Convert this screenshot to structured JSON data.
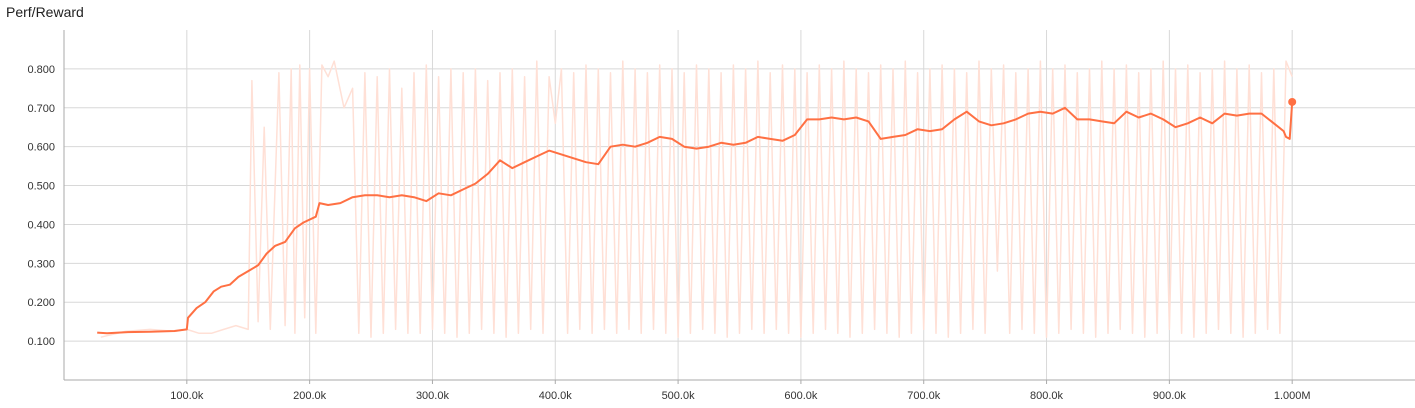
{
  "chart_data": {
    "type": "line",
    "title": "Perf/Reward",
    "xlabel": "",
    "ylabel": "",
    "xlim": [
      0,
      1100000
    ],
    "ylim": [
      0.0,
      0.9
    ],
    "grid": true,
    "x_ticks": [
      {
        "value": 100000,
        "label": "100.0k"
      },
      {
        "value": 200000,
        "label": "200.0k"
      },
      {
        "value": 300000,
        "label": "300.0k"
      },
      {
        "value": 400000,
        "label": "400.0k"
      },
      {
        "value": 500000,
        "label": "500.0k"
      },
      {
        "value": 600000,
        "label": "600.0k"
      },
      {
        "value": 700000,
        "label": "700.0k"
      },
      {
        "value": 800000,
        "label": "800.0k"
      },
      {
        "value": 900000,
        "label": "900.0k"
      },
      {
        "value": 1000000,
        "label": "1.000M"
      }
    ],
    "y_ticks": [
      {
        "value": 0.1,
        "label": "0.100"
      },
      {
        "value": 0.2,
        "label": "0.200"
      },
      {
        "value": 0.3,
        "label": "0.300"
      },
      {
        "value": 0.4,
        "label": "0.400"
      },
      {
        "value": 0.5,
        "label": "0.500"
      },
      {
        "value": 0.6,
        "label": "0.600"
      },
      {
        "value": 0.7,
        "label": "0.700"
      },
      {
        "value": 0.8,
        "label": "0.800"
      }
    ],
    "colors": {
      "smoothed": "#ff7043",
      "raw": "#ffe0d6",
      "grid": "#d8d8d8",
      "axis": "#aaaaaa"
    },
    "series": [
      {
        "role": "smoothed",
        "x": [
          27000,
          35000,
          50000,
          70000,
          90000,
          100000,
          101000,
          108000,
          115000,
          122000,
          128000,
          135000,
          142000,
          150000,
          158000,
          165000,
          172000,
          180000,
          188000,
          195000,
          205000,
          208000,
          215000,
          225000,
          235000,
          245000,
          255000,
          265000,
          275000,
          285000,
          295000,
          305000,
          315000,
          325000,
          335000,
          345000,
          355000,
          365000,
          375000,
          385000,
          395000,
          405000,
          415000,
          425000,
          435000,
          445000,
          455000,
          465000,
          475000,
          485000,
          495000,
          505000,
          515000,
          525000,
          535000,
          545000,
          555000,
          565000,
          575000,
          585000,
          595000,
          605000,
          615000,
          625000,
          635000,
          645000,
          655000,
          665000,
          675000,
          685000,
          695000,
          705000,
          715000,
          725000,
          735000,
          745000,
          755000,
          765000,
          775000,
          785000,
          795000,
          805000,
          815000,
          825000,
          835000,
          845000,
          855000,
          865000,
          875000,
          885000,
          895000,
          905000,
          915000,
          925000,
          935000,
          945000,
          955000,
          965000,
          975000,
          985000,
          993000,
          995000,
          998000,
          1000000
        ],
        "y": [
          0.122,
          0.12,
          0.123,
          0.124,
          0.126,
          0.13,
          0.16,
          0.185,
          0.2,
          0.228,
          0.24,
          0.245,
          0.265,
          0.28,
          0.295,
          0.325,
          0.345,
          0.355,
          0.39,
          0.405,
          0.42,
          0.455,
          0.45,
          0.455,
          0.47,
          0.475,
          0.475,
          0.47,
          0.475,
          0.47,
          0.46,
          0.48,
          0.475,
          0.49,
          0.505,
          0.53,
          0.565,
          0.545,
          0.56,
          0.575,
          0.59,
          0.58,
          0.57,
          0.56,
          0.555,
          0.6,
          0.605,
          0.6,
          0.61,
          0.625,
          0.62,
          0.6,
          0.595,
          0.6,
          0.61,
          0.605,
          0.61,
          0.625,
          0.62,
          0.615,
          0.63,
          0.67,
          0.67,
          0.675,
          0.67,
          0.675,
          0.665,
          0.62,
          0.625,
          0.63,
          0.645,
          0.64,
          0.645,
          0.67,
          0.69,
          0.665,
          0.655,
          0.66,
          0.67,
          0.685,
          0.69,
          0.685,
          0.7,
          0.67,
          0.67,
          0.665,
          0.66,
          0.69,
          0.675,
          0.685,
          0.67,
          0.65,
          0.66,
          0.675,
          0.66,
          0.685,
          0.68,
          0.685,
          0.685,
          0.66,
          0.64,
          0.625,
          0.62,
          0.715
        ]
      },
      {
        "role": "raw",
        "x": [
          30000,
          50000,
          70000,
          90000,
          100000,
          110000,
          120000,
          130000,
          140000,
          150000,
          153000,
          158000,
          163000,
          168000,
          175000,
          180000,
          185000,
          188000,
          192000,
          196000,
          200000,
          205000,
          210000,
          215000,
          220000,
          228000,
          235000,
          240000,
          245000,
          250000,
          255000,
          260000,
          265000,
          270000,
          275000,
          280000,
          285000,
          290000,
          295000,
          300000,
          305000,
          310000,
          315000,
          320000,
          325000,
          330000,
          335000,
          340000,
          345000,
          350000,
          355000,
          360000,
          365000,
          370000,
          375000,
          380000,
          385000,
          390000,
          395000,
          400000,
          405000,
          410000,
          415000,
          420000,
          425000,
          430000,
          435000,
          440000,
          445000,
          450000,
          455000,
          460000,
          465000,
          470000,
          475000,
          480000,
          485000,
          490000,
          495000,
          500000,
          505000,
          510000,
          515000,
          520000,
          525000,
          530000,
          535000,
          540000,
          545000,
          550000,
          555000,
          560000,
          565000,
          570000,
          575000,
          580000,
          585000,
          590000,
          595000,
          600000,
          605000,
          610000,
          615000,
          620000,
          625000,
          630000,
          635000,
          640000,
          645000,
          650000,
          655000,
          660000,
          665000,
          670000,
          675000,
          680000,
          685000,
          690000,
          695000,
          700000,
          705000,
          710000,
          715000,
          720000,
          725000,
          730000,
          735000,
          740000,
          745000,
          750000,
          755000,
          760000,
          765000,
          770000,
          775000,
          780000,
          785000,
          790000,
          795000,
          800000,
          805000,
          810000,
          815000,
          820000,
          825000,
          830000,
          835000,
          840000,
          845000,
          850000,
          855000,
          860000,
          865000,
          870000,
          875000,
          880000,
          885000,
          890000,
          895000,
          900000,
          905000,
          910000,
          915000,
          920000,
          925000,
          930000,
          935000,
          940000,
          945000,
          950000,
          955000,
          960000,
          965000,
          970000,
          975000,
          980000,
          985000,
          990000,
          995000,
          1000000
        ],
        "y": [
          0.11,
          0.125,
          0.13,
          0.125,
          0.13,
          0.12,
          0.12,
          0.13,
          0.14,
          0.13,
          0.77,
          0.15,
          0.65,
          0.13,
          0.79,
          0.14,
          0.8,
          0.12,
          0.81,
          0.16,
          0.8,
          0.12,
          0.81,
          0.78,
          0.82,
          0.7,
          0.75,
          0.12,
          0.79,
          0.11,
          0.78,
          0.12,
          0.8,
          0.13,
          0.75,
          0.12,
          0.79,
          0.12,
          0.81,
          0.13,
          0.78,
          0.12,
          0.8,
          0.11,
          0.79,
          0.12,
          0.8,
          0.13,
          0.77,
          0.12,
          0.79,
          0.11,
          0.8,
          0.12,
          0.78,
          0.13,
          0.82,
          0.12,
          0.78,
          0.66,
          0.8,
          0.12,
          0.79,
          0.13,
          0.81,
          0.12,
          0.8,
          0.13,
          0.79,
          0.12,
          0.82,
          0.13,
          0.8,
          0.12,
          0.79,
          0.13,
          0.81,
          0.12,
          0.8,
          0.11,
          0.79,
          0.12,
          0.81,
          0.13,
          0.8,
          0.12,
          0.79,
          0.11,
          0.81,
          0.12,
          0.8,
          0.13,
          0.82,
          0.12,
          0.79,
          0.13,
          0.81,
          0.12,
          0.8,
          0.11,
          0.79,
          0.12,
          0.81,
          0.13,
          0.8,
          0.12,
          0.82,
          0.11,
          0.8,
          0.12,
          0.79,
          0.13,
          0.81,
          0.12,
          0.8,
          0.11,
          0.82,
          0.12,
          0.79,
          0.13,
          0.8,
          0.12,
          0.81,
          0.11,
          0.8,
          0.12,
          0.79,
          0.13,
          0.82,
          0.12,
          0.8,
          0.28,
          0.81,
          0.12,
          0.79,
          0.13,
          0.8,
          0.12,
          0.82,
          0.11,
          0.8,
          0.12,
          0.81,
          0.13,
          0.79,
          0.12,
          0.8,
          0.11,
          0.82,
          0.12,
          0.8,
          0.13,
          0.81,
          0.12,
          0.79,
          0.11,
          0.8,
          0.12,
          0.82,
          0.13,
          0.8,
          0.12,
          0.81,
          0.11,
          0.79,
          0.12,
          0.8,
          0.13,
          0.82,
          0.12,
          0.8,
          0.11,
          0.81,
          0.12,
          0.79,
          0.13,
          0.8,
          0.12,
          0.82,
          0.78
        ]
      }
    ]
  }
}
